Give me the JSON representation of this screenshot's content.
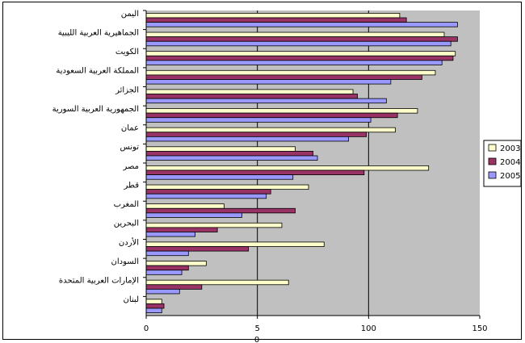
{
  "chart_data": {
    "type": "bar",
    "orientation": "horizontal",
    "categories": [
      "اليمن",
      "الجماهيرية العربية الليبية",
      "الكويت",
      "المملكة العربية السعودية",
      "الجزائر",
      "الجمهورية العربية السورية",
      "عمان",
      "تونس",
      "مصر",
      "قطر",
      "المغرب",
      "البحرين",
      "الأردن",
      "السودان",
      "الإمارات العربية المتحدة",
      "لبنان"
    ],
    "series": [
      {
        "name": "2003",
        "color": "#ffffcc",
        "values": [
          114,
          134,
          139,
          130,
          93,
          122,
          112,
          67,
          127,
          73,
          35,
          61,
          80,
          27,
          64,
          7
        ]
      },
      {
        "name": "2004",
        "color": "#993366",
        "values": [
          117,
          140,
          138,
          124,
          95,
          113,
          99,
          75,
          98,
          56,
          67,
          32,
          46,
          19,
          25,
          8
        ]
      },
      {
        "name": "2005",
        "color": "#9999ff",
        "values": [
          140,
          137,
          133,
          110,
          108,
          101,
          91,
          77,
          66,
          54,
          43,
          22,
          19,
          16,
          15,
          7
        ]
      }
    ],
    "xticks": [
      "0",
      "5",
      "100",
      "150"
    ],
    "xlim": [
      0,
      150
    ],
    "xlabel": "0",
    "grid": true,
    "legend_position": "right"
  }
}
